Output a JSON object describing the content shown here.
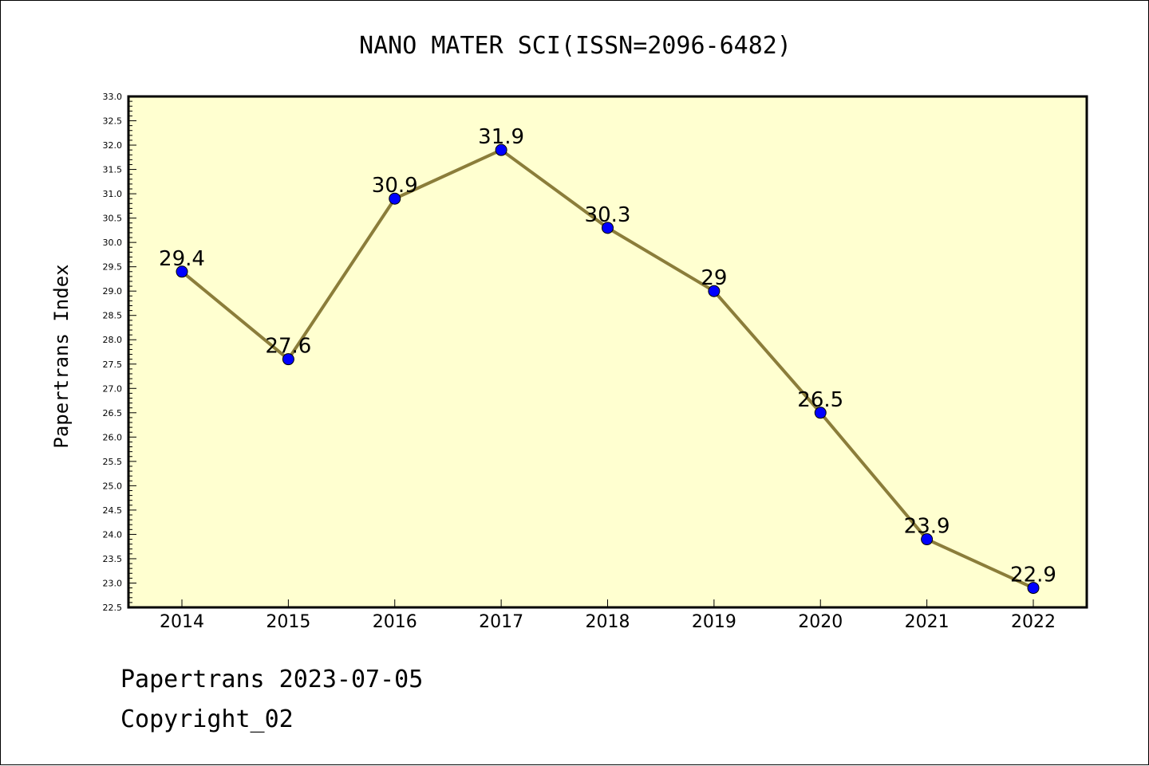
{
  "chart_data": {
    "type": "line",
    "title": "NANO MATER SCI(ISSN=2096-6482)",
    "xlabel": "",
    "ylabel": "Papertrans Index",
    "categories": [
      "2014",
      "2015",
      "2016",
      "2017",
      "2018",
      "2019",
      "2020",
      "2021",
      "2022"
    ],
    "values": [
      29.4,
      27.6,
      30.9,
      31.9,
      30.3,
      29,
      26.5,
      23.9,
      22.9
    ],
    "data_labels": [
      "29.4",
      "27.6",
      "30.9",
      "31.9",
      "30.3",
      "29",
      "26.5",
      "23.9",
      "22.9"
    ],
    "ylim": [
      22.5,
      33.0
    ],
    "yticks": [
      "22.5",
      "23.0",
      "23.5",
      "24.0",
      "24.5",
      "25.0",
      "25.5",
      "26.0",
      "26.5",
      "27.0",
      "27.5",
      "28.0",
      "28.5",
      "29.0",
      "29.5",
      "30.0",
      "30.5",
      "31.0",
      "31.5",
      "32.0",
      "32.5",
      "33.0"
    ],
    "grid": false,
    "plot_background": "#ffffd0",
    "line_color": "#8b7d3a",
    "marker_color": "#0000ff"
  },
  "footer": {
    "line1": "Papertrans 2023-07-05",
    "line2": "Copyright_02"
  }
}
